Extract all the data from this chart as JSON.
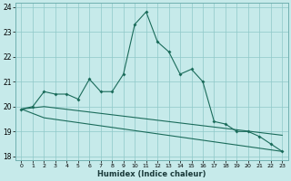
{
  "xlabel": "Humidex (Indice chaleur)",
  "bg_color": "#c6eaea",
  "grid_color": "#8ec8c8",
  "line_color": "#1a6b5a",
  "xlim": [
    -0.5,
    23.5
  ],
  "ylim": [
    17.85,
    24.15
  ],
  "yticks": [
    18,
    19,
    20,
    21,
    22,
    23,
    24
  ],
  "xticks": [
    0,
    1,
    2,
    3,
    4,
    5,
    6,
    7,
    8,
    9,
    10,
    11,
    12,
    13,
    14,
    15,
    16,
    17,
    18,
    19,
    20,
    21,
    22,
    23
  ],
  "line1_x": [
    0,
    1,
    2,
    3,
    4,
    5,
    6,
    7,
    8,
    9,
    10,
    11,
    12,
    13,
    14,
    15,
    16,
    17,
    18,
    19,
    20,
    21,
    22,
    23
  ],
  "line1_y": [
    19.9,
    20.0,
    20.6,
    20.5,
    20.5,
    20.3,
    21.1,
    20.6,
    20.6,
    21.3,
    23.3,
    23.8,
    22.6,
    22.2,
    21.3,
    21.5,
    21.0,
    19.4,
    19.3,
    19.0,
    19.0,
    18.8,
    18.5,
    18.2
  ],
  "line2_x": [
    0,
    2,
    23
  ],
  "line2_y": [
    19.9,
    20.0,
    18.85
  ],
  "line3_x": [
    0,
    2,
    23
  ],
  "line3_y": [
    19.9,
    19.55,
    18.2
  ]
}
